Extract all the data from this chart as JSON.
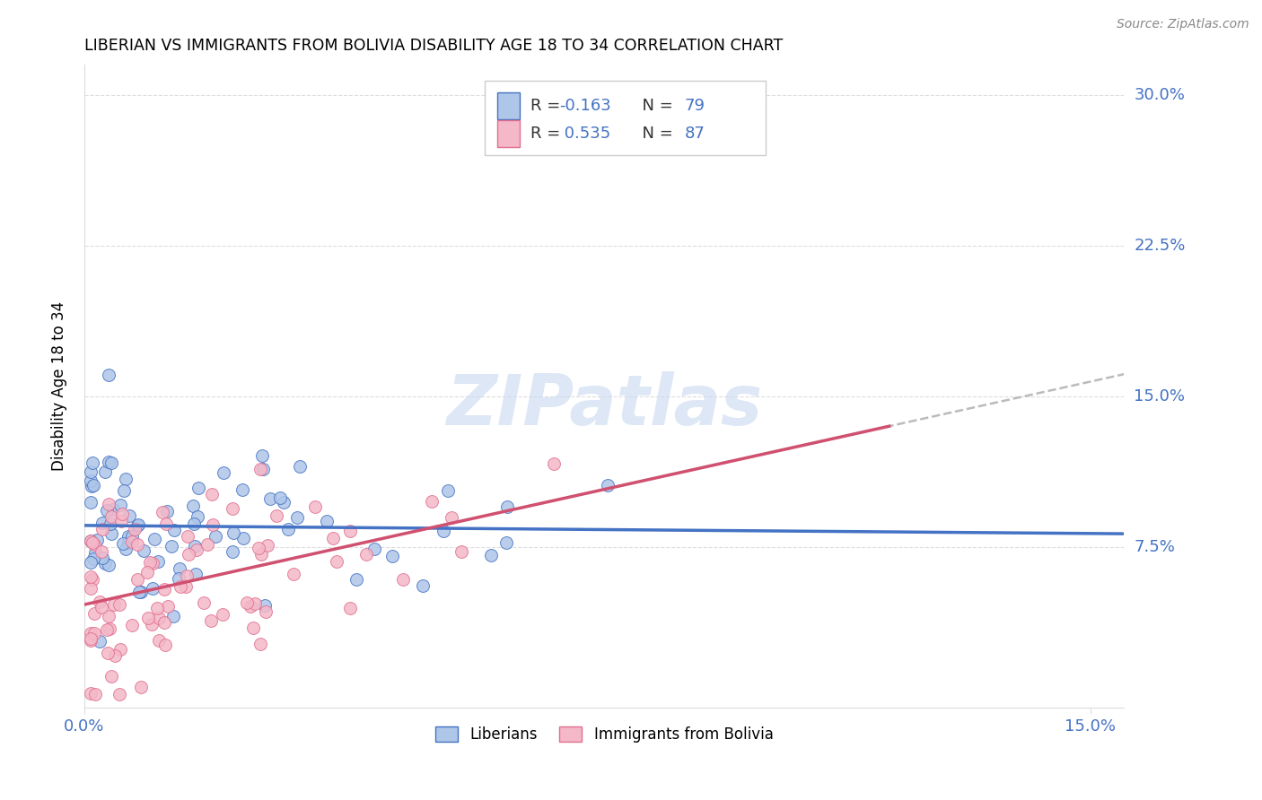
{
  "title": "LIBERIAN VS IMMIGRANTS FROM BOLIVIA DISABILITY AGE 18 TO 34 CORRELATION CHART",
  "source": "Source: ZipAtlas.com",
  "ylabel": "Disability Age 18 to 34",
  "ytick_vals": [
    0.075,
    0.15,
    0.225,
    0.3
  ],
  "ytick_labels": [
    "7.5%",
    "15.0%",
    "22.5%",
    "30.0%"
  ],
  "xlim": [
    0.0,
    0.155
  ],
  "ylim": [
    -0.005,
    0.315
  ],
  "legend_label1": "Liberians",
  "legend_label2": "Immigrants from Bolivia",
  "r1": -0.163,
  "n1": 79,
  "r2": 0.535,
  "n2": 87,
  "color_blue_fill": "#aec6e8",
  "color_pink_fill": "#f4b8c8",
  "color_blue_edge": "#4472C4",
  "color_pink_edge": "#e07090",
  "color_blue_text": "#4472C4",
  "color_trendline_blue": "#4472C4",
  "color_trendline_pink": "#d05070",
  "color_dashed": "#bbbbbb",
  "watermark_color": "#c8d8f0",
  "grid_color": "#dddddd",
  "background": "#ffffff"
}
